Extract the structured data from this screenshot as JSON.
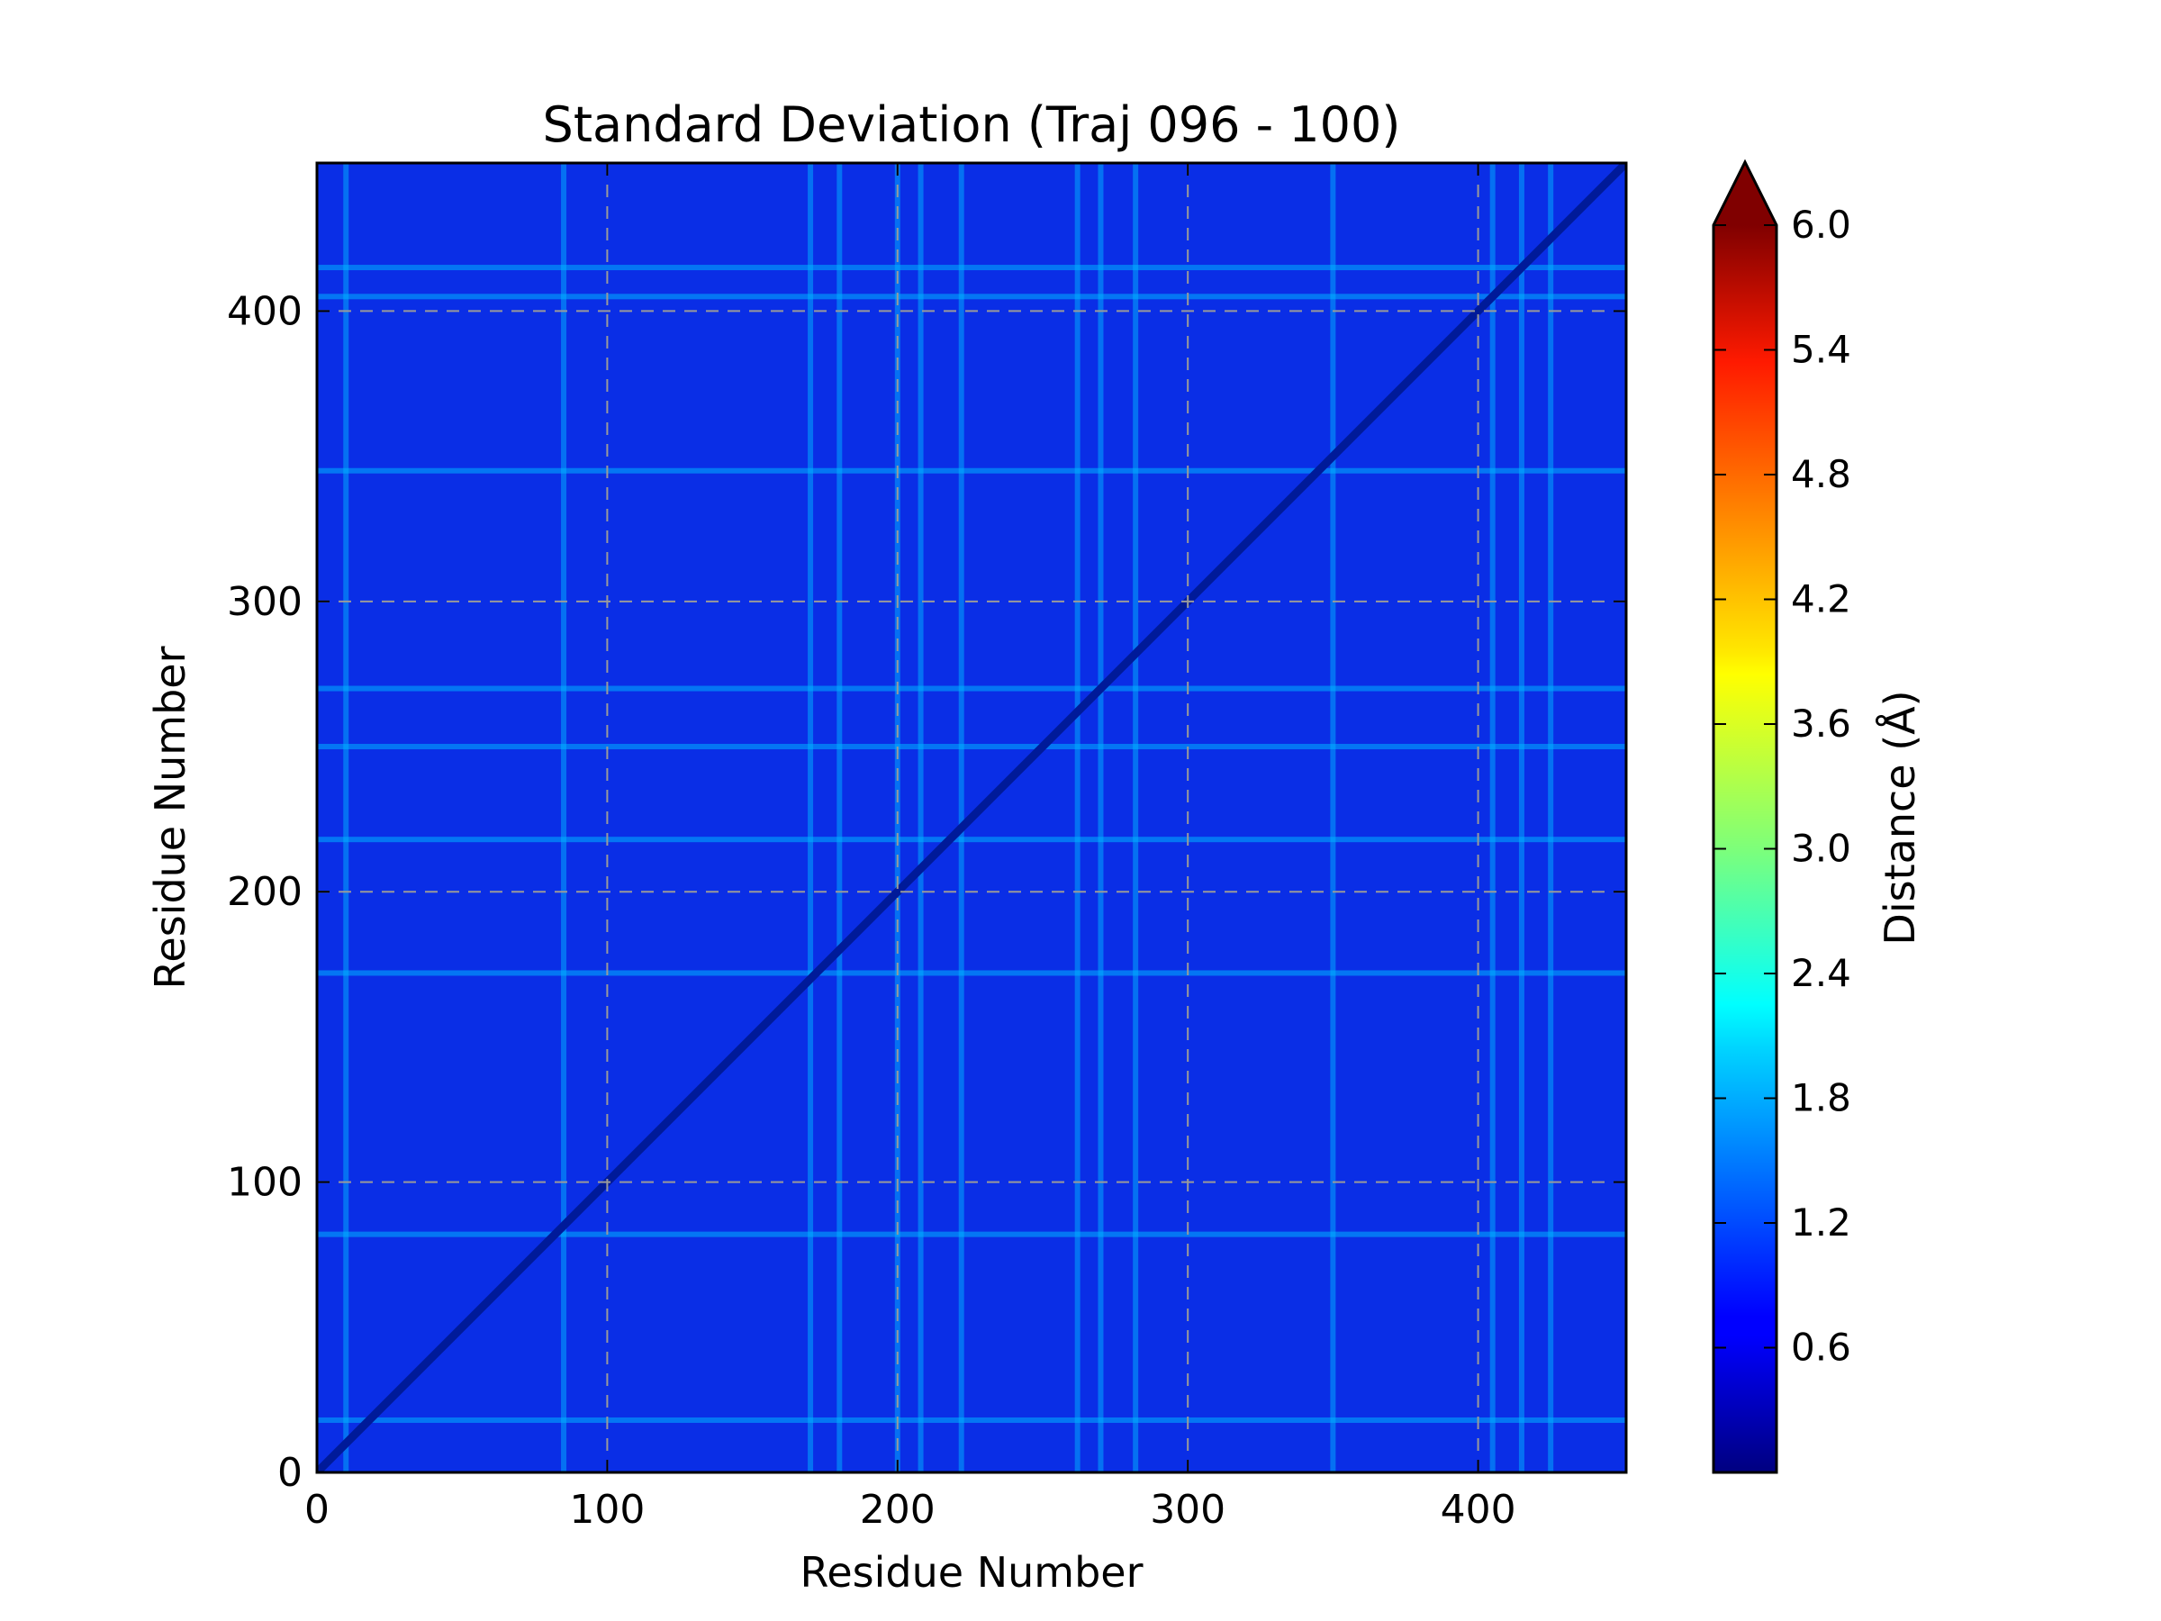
{
  "chart_data": {
    "type": "heatmap",
    "title": "Standard Deviation (Traj 096 - 100)",
    "xlabel": "Residue Number",
    "ylabel": "Residue Number",
    "xlim": [
      0,
      451
    ],
    "ylim": [
      0,
      451
    ],
    "xticks": [
      0,
      100,
      200,
      300,
      400
    ],
    "yticks": [
      0,
      100,
      200,
      300,
      400
    ],
    "grid": true,
    "grid_style": "dashed",
    "colormap": "jet",
    "colorbar": {
      "label": "Distance (Å)",
      "range": [
        0.0,
        6.0
      ],
      "ticks": [
        0.6,
        1.2,
        1.8,
        2.4,
        3.0,
        3.6,
        4.2,
        4.8,
        5.4,
        6.0
      ],
      "extend": "max"
    },
    "description_values": {
      "background_level": 0.7,
      "diagonal_level": 0.05,
      "bright_rows_y": [
        18,
        82,
        172,
        218,
        250,
        270,
        345,
        405,
        415
      ],
      "bright_cols_x": [
        10,
        85,
        170,
        180,
        200,
        208,
        222,
        262,
        270,
        282,
        350,
        405,
        415,
        425
      ],
      "peak_level": 1.8
    }
  }
}
